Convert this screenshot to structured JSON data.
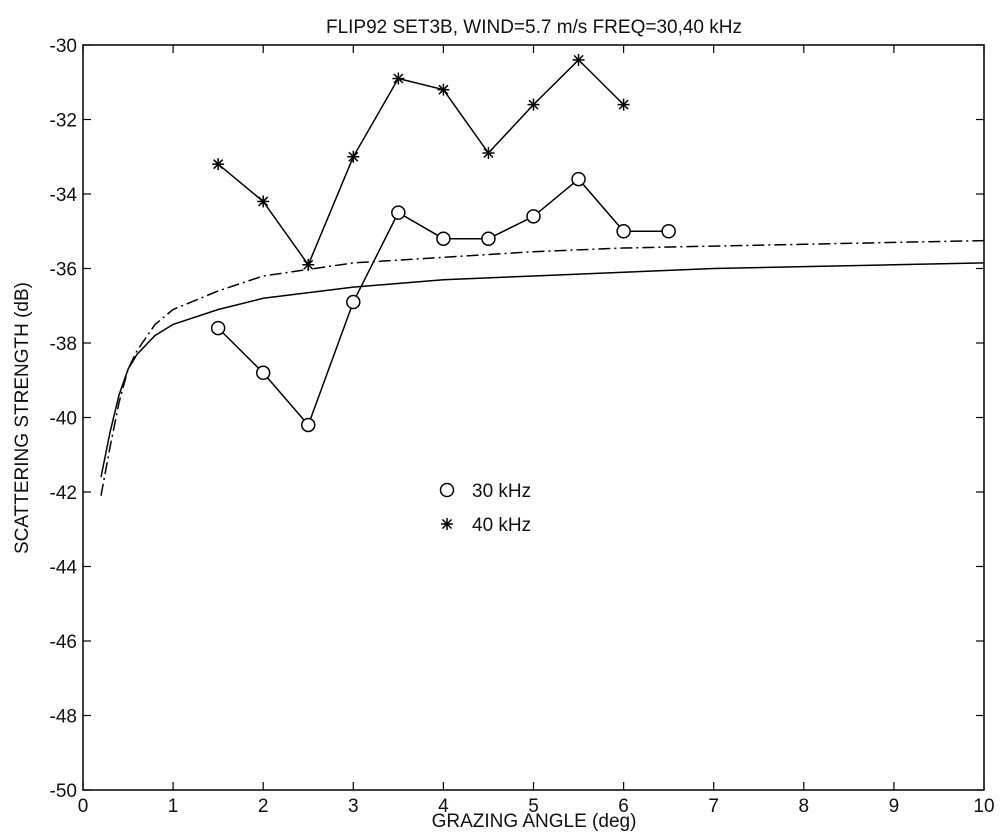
{
  "chart_data": {
    "type": "line",
    "title": "FLIP92 SET3B, WIND=5.7 m/s FREQ=30,40 kHz",
    "xlabel": "GRAZING ANGLE (deg)",
    "ylabel": "SCATTERING STRENGTH (dB)",
    "xlim": [
      0,
      10
    ],
    "ylim": [
      -50,
      -30
    ],
    "xticks": [
      0,
      1,
      2,
      3,
      4,
      5,
      6,
      7,
      8,
      9,
      10
    ],
    "yticks": [
      -50,
      -48,
      -46,
      -44,
      -42,
      -40,
      -38,
      -36,
      -34,
      -32,
      -30
    ],
    "grid": false,
    "legend_position": "center",
    "series": [
      {
        "name": "30 kHz",
        "marker": "circle",
        "line": "solid",
        "x": [
          1.5,
          2.0,
          2.5,
          3.0,
          3.5,
          4.0,
          4.5,
          5.0,
          5.5,
          6.0,
          6.5
        ],
        "y": [
          -37.6,
          -38.8,
          -40.2,
          -36.9,
          -34.5,
          -35.2,
          -35.2,
          -34.6,
          -33.6,
          -35.0,
          -35.0
        ]
      },
      {
        "name": "40 kHz",
        "marker": "asterisk",
        "line": "solid",
        "x": [
          1.5,
          2.0,
          2.5,
          3.0,
          3.5,
          4.0,
          4.5,
          5.0,
          5.5,
          6.0
        ],
        "y": [
          -33.2,
          -34.2,
          -35.9,
          -33.0,
          -30.9,
          -31.2,
          -32.9,
          -31.6,
          -30.4,
          -31.6
        ]
      },
      {
        "marker": "none",
        "line": "solid",
        "x": [
          0.2,
          0.3,
          0.4,
          0.5,
          0.6,
          0.8,
          1.0,
          1.5,
          2.0,
          3.0,
          4.0,
          5.0,
          6.0,
          7.0,
          8.0,
          9.0,
          10.0
        ],
        "y": [
          -41.6,
          -40.4,
          -39.4,
          -38.7,
          -38.3,
          -37.8,
          -37.5,
          -37.1,
          -36.8,
          -36.5,
          -36.3,
          -36.2,
          -36.1,
          -36.0,
          -35.95,
          -35.9,
          -35.85
        ]
      },
      {
        "marker": "none",
        "line": "dashdot",
        "x": [
          0.2,
          0.3,
          0.4,
          0.5,
          0.6,
          0.8,
          1.0,
          1.5,
          2.0,
          3.0,
          4.0,
          5.0,
          6.0,
          7.0,
          8.0,
          9.0,
          10.0
        ],
        "y": [
          -42.1,
          -40.8,
          -39.6,
          -38.7,
          -38.2,
          -37.5,
          -37.1,
          -36.6,
          -36.2,
          -35.85,
          -35.7,
          -35.55,
          -35.45,
          -35.4,
          -35.35,
          -35.3,
          -35.25
        ]
      }
    ]
  }
}
